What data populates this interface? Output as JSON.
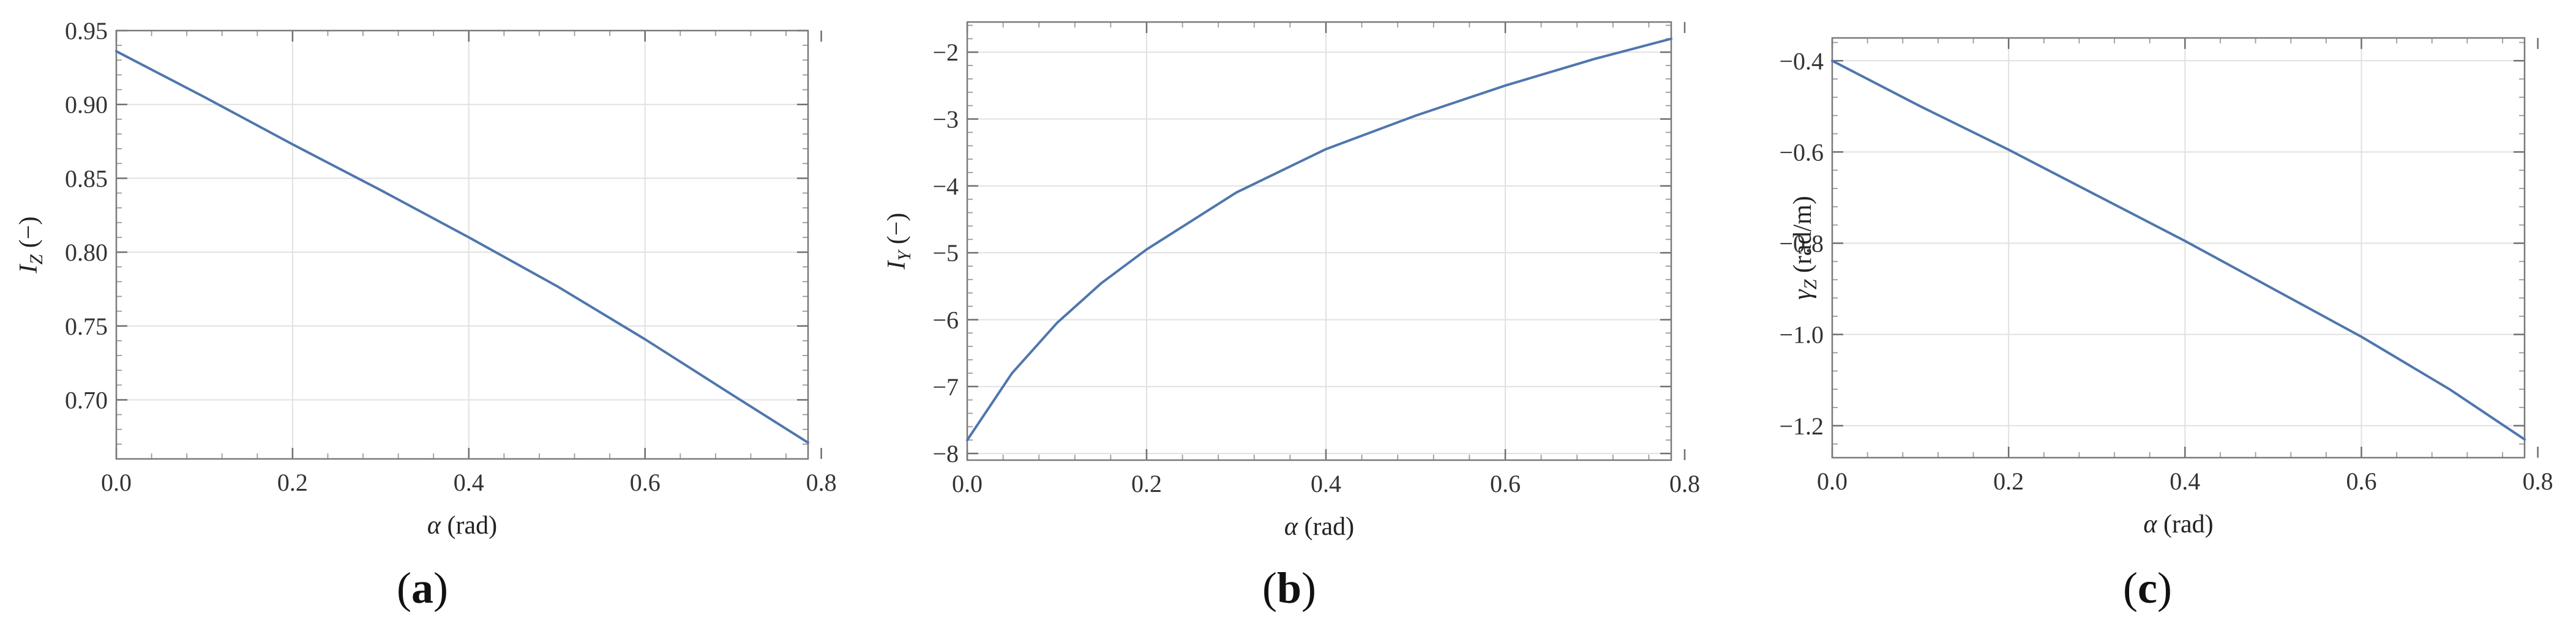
{
  "colors": {
    "series": "#4f76ad"
  },
  "panels": [
    {
      "label_bold": "a",
      "xlabel": {
        "symbol": "α",
        "unit": " (rad)"
      },
      "ylabel": {
        "symbol": "I",
        "sub": "Z",
        "unit": " (−)"
      }
    },
    {
      "label_bold": "b",
      "xlabel": {
        "symbol": "α",
        "unit": " (rad)"
      },
      "ylabel": {
        "symbol": "I",
        "sub": "Y",
        "unit": " (−)"
      }
    },
    {
      "label_bold": "c",
      "xlabel": {
        "symbol": "α",
        "unit": " (rad)"
      },
      "ylabel": {
        "symbol": "γ",
        "sub": "Z",
        "unit": " (rad/m)"
      }
    }
  ],
  "chart_data": [
    {
      "type": "line",
      "title": "",
      "xlabel": "α (rad)",
      "ylabel": "I_Z (−)",
      "xlim": [
        0,
        0.785
      ],
      "ylim": [
        0.66,
        0.95
      ],
      "xticks": [
        0.0,
        0.2,
        0.4,
        0.6,
        0.8
      ],
      "xtick_labels": [
        "0.0",
        "0.2",
        "0.4",
        "0.6",
        "0.8"
      ],
      "yticks": [
        0.7,
        0.75,
        0.8,
        0.85,
        0.9,
        0.95
      ],
      "ytick_labels": [
        "0.70",
        "0.75",
        "0.80",
        "0.85",
        "0.90",
        "0.95"
      ],
      "grid": true,
      "series": [
        {
          "x": [
            0.0,
            0.1,
            0.2,
            0.3,
            0.4,
            0.5,
            0.6,
            0.7,
            0.785
          ],
          "y": [
            0.936,
            0.905,
            0.873,
            0.842,
            0.81,
            0.777,
            0.741,
            0.703,
            0.671
          ]
        }
      ]
    },
    {
      "type": "line",
      "title": "",
      "xlabel": "α (rad)",
      "ylabel": "I_Y (−)",
      "xlim": [
        0,
        0.785
      ],
      "ylim": [
        -8.1,
        -1.55
      ],
      "xticks": [
        0.0,
        0.2,
        0.4,
        0.6,
        0.8
      ],
      "xtick_labels": [
        "0.0",
        "0.2",
        "0.4",
        "0.6",
        "0.8"
      ],
      "yticks": [
        -8,
        -7,
        -6,
        -5,
        -4,
        -3,
        -2
      ],
      "ytick_labels": [
        "−8",
        "−7",
        "−6",
        "−5",
        "−4",
        "−3",
        "−2"
      ],
      "grid": true,
      "series": [
        {
          "x": [
            0.0,
            0.05,
            0.1,
            0.15,
            0.2,
            0.3,
            0.4,
            0.5,
            0.6,
            0.7,
            0.785
          ],
          "y": [
            -7.8,
            -6.8,
            -6.05,
            -5.45,
            -4.95,
            -4.1,
            -3.45,
            -2.95,
            -2.5,
            -2.1,
            -1.8
          ]
        }
      ]
    },
    {
      "type": "line",
      "title": "",
      "xlabel": "α (rad)",
      "ylabel": "γ_Z (rad/m)",
      "xlim": [
        0,
        0.785
      ],
      "ylim": [
        -1.27,
        -0.35
      ],
      "xticks": [
        0.0,
        0.2,
        0.4,
        0.6,
        0.8
      ],
      "xtick_labels": [
        "0.0",
        "0.2",
        "0.4",
        "0.6",
        "0.8"
      ],
      "yticks": [
        -1.2,
        -1.0,
        -0.8,
        -0.6,
        -0.4
      ],
      "ytick_labels": [
        "−1.2",
        "−1.0",
        "−0.8",
        "−0.6",
        "−0.4"
      ],
      "grid": true,
      "series": [
        {
          "x": [
            0.0,
            0.1,
            0.2,
            0.3,
            0.4,
            0.5,
            0.6,
            0.7,
            0.785
          ],
          "y": [
            -0.4,
            -0.5,
            -0.595,
            -0.695,
            -0.795,
            -0.9,
            -1.005,
            -1.12,
            -1.23
          ]
        }
      ]
    }
  ]
}
